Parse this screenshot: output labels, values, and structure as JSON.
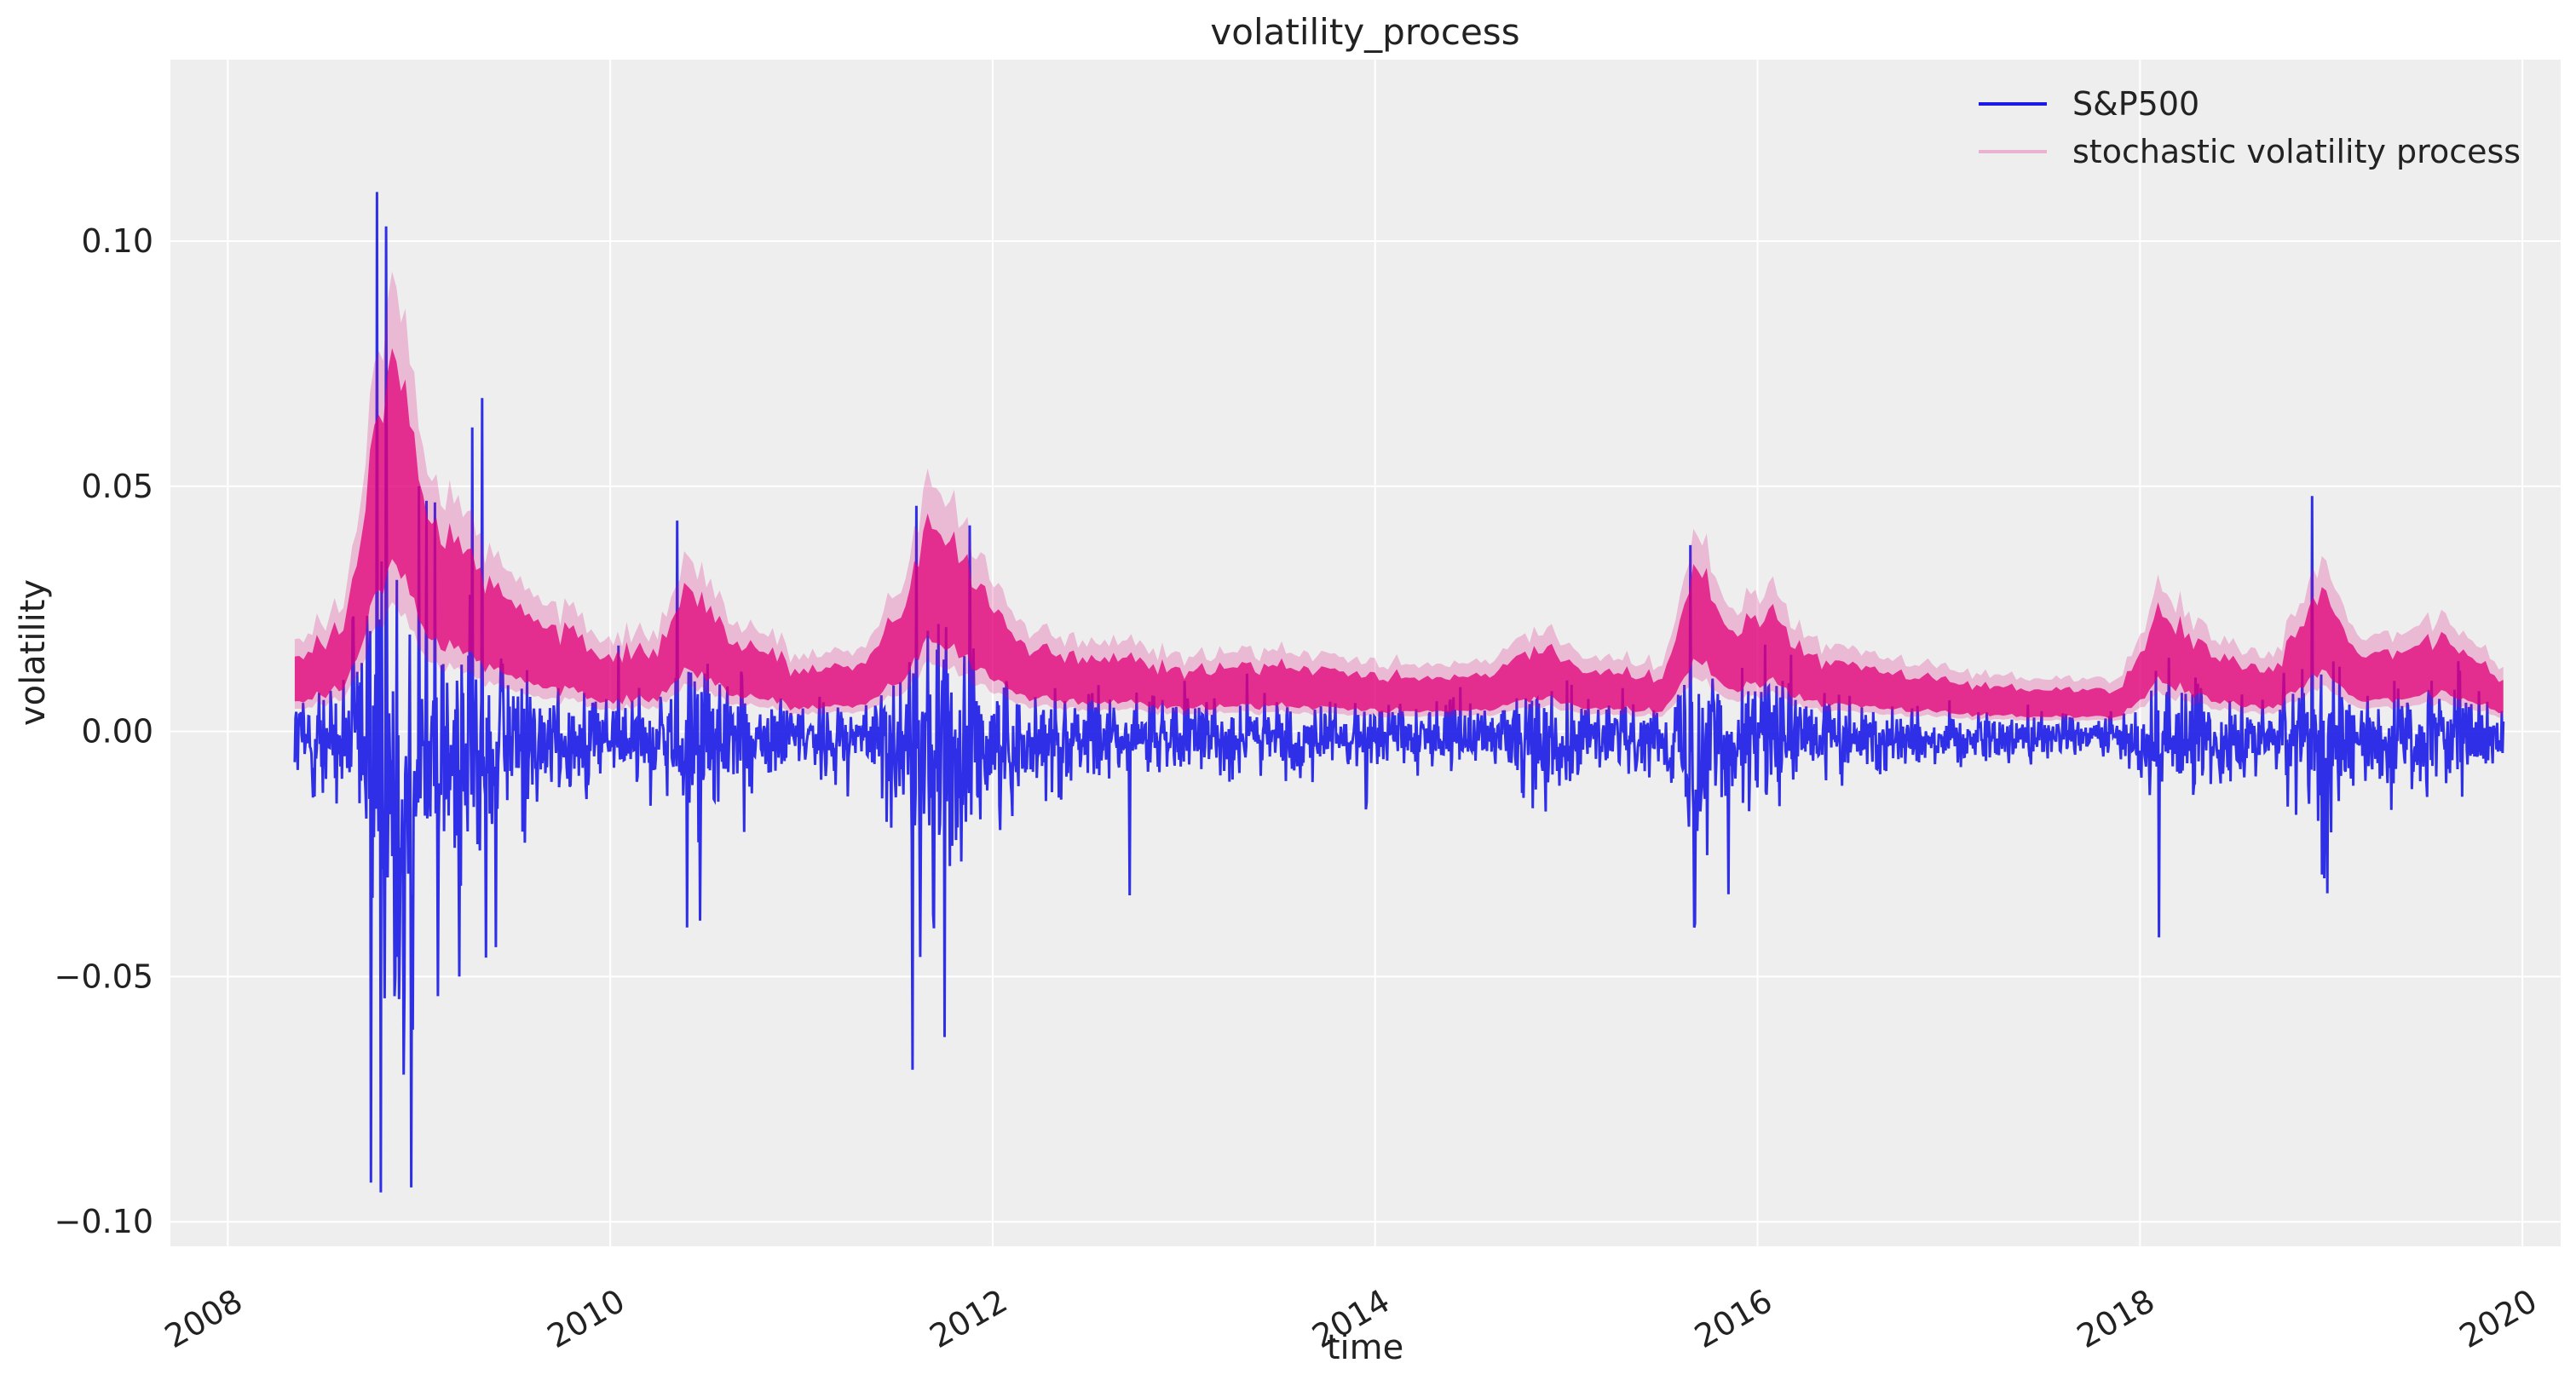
{
  "chart_data": {
    "type": "line",
    "title": "volatility_process",
    "xlabel": "time",
    "ylabel": "volatility",
    "xlim": [
      2007.7,
      2020.2
    ],
    "ylim": [
      -0.105,
      0.137
    ],
    "x_ticks": [
      2008,
      2010,
      2012,
      2014,
      2016,
      2018,
      2020
    ],
    "x_tick_labels": [
      "2008",
      "2010",
      "2012",
      "2014",
      "2016",
      "2018",
      "2020"
    ],
    "y_ticks": [
      -0.1,
      -0.05,
      0.0,
      0.05,
      0.1
    ],
    "y_tick_labels": [
      "−0.10",
      "−0.05",
      "0.00",
      "0.05",
      "0.10"
    ],
    "grid": true,
    "legend_position": "top-right",
    "x_start": 2008.35,
    "x_end": 2019.9,
    "series": [
      {
        "name": "S&P500",
        "color": "#1a1ae6",
        "style": "line",
        "extremes": [
          {
            "x": 2008.75,
            "y": -0.092
          },
          {
            "x": 2008.78,
            "y": 0.11
          },
          {
            "x": 2008.8,
            "y": -0.094
          },
          {
            "x": 2008.83,
            "y": 0.103
          },
          {
            "x": 2008.87,
            "y": -0.054
          },
          {
            "x": 2008.92,
            "y": -0.07
          },
          {
            "x": 2008.96,
            "y": -0.093
          },
          {
            "x": 2009.0,
            "y": 0.05
          },
          {
            "x": 2009.1,
            "y": -0.054
          },
          {
            "x": 2009.21,
            "y": -0.05
          },
          {
            "x": 2009.28,
            "y": 0.062
          },
          {
            "x": 2009.33,
            "y": 0.068
          },
          {
            "x": 2009.4,
            "y": -0.044
          },
          {
            "x": 2010.35,
            "y": 0.043
          },
          {
            "x": 2010.4,
            "y": -0.04
          },
          {
            "x": 2011.58,
            "y": -0.069
          },
          {
            "x": 2011.6,
            "y": 0.046
          },
          {
            "x": 2011.62,
            "y": -0.046
          },
          {
            "x": 2011.88,
            "y": 0.042
          },
          {
            "x": 2015.65,
            "y": 0.038
          },
          {
            "x": 2015.67,
            "y": -0.04
          },
          {
            "x": 2018.1,
            "y": -0.042
          },
          {
            "x": 2018.9,
            "y": 0.048
          },
          {
            "x": 2018.98,
            "y": -0.033
          }
        ]
      },
      {
        "name": "stochastic volatility process",
        "color": "#e0007a",
        "style": "band",
        "center": [
          {
            "x": 2008.35,
            "y": 0.01
          },
          {
            "x": 2008.6,
            "y": 0.014
          },
          {
            "x": 2008.78,
            "y": 0.045
          },
          {
            "x": 2008.9,
            "y": 0.058
          },
          {
            "x": 2009.05,
            "y": 0.032
          },
          {
            "x": 2009.3,
            "y": 0.025
          },
          {
            "x": 2009.6,
            "y": 0.016
          },
          {
            "x": 2010.0,
            "y": 0.01
          },
          {
            "x": 2010.25,
            "y": 0.011
          },
          {
            "x": 2010.4,
            "y": 0.022
          },
          {
            "x": 2010.6,
            "y": 0.014
          },
          {
            "x": 2011.0,
            "y": 0.008
          },
          {
            "x": 2011.3,
            "y": 0.009
          },
          {
            "x": 2011.55,
            "y": 0.018
          },
          {
            "x": 2011.65,
            "y": 0.034
          },
          {
            "x": 2011.9,
            "y": 0.022
          },
          {
            "x": 2012.2,
            "y": 0.011
          },
          {
            "x": 2012.6,
            "y": 0.01
          },
          {
            "x": 2013.0,
            "y": 0.008
          },
          {
            "x": 2013.5,
            "y": 0.009
          },
          {
            "x": 2014.0,
            "y": 0.007
          },
          {
            "x": 2014.6,
            "y": 0.007
          },
          {
            "x": 2014.85,
            "y": 0.012
          },
          {
            "x": 2015.1,
            "y": 0.008
          },
          {
            "x": 2015.5,
            "y": 0.007
          },
          {
            "x": 2015.68,
            "y": 0.024
          },
          {
            "x": 2015.85,
            "y": 0.014
          },
          {
            "x": 2016.05,
            "y": 0.017
          },
          {
            "x": 2016.3,
            "y": 0.01
          },
          {
            "x": 2016.8,
            "y": 0.007
          },
          {
            "x": 2017.4,
            "y": 0.005
          },
          {
            "x": 2017.9,
            "y": 0.005
          },
          {
            "x": 2018.12,
            "y": 0.017
          },
          {
            "x": 2018.4,
            "y": 0.01
          },
          {
            "x": 2018.7,
            "y": 0.008
          },
          {
            "x": 2018.95,
            "y": 0.021
          },
          {
            "x": 2019.15,
            "y": 0.01
          },
          {
            "x": 2019.4,
            "y": 0.011
          },
          {
            "x": 2019.6,
            "y": 0.013
          },
          {
            "x": 2019.9,
            "y": 0.006
          }
        ]
      }
    ]
  }
}
